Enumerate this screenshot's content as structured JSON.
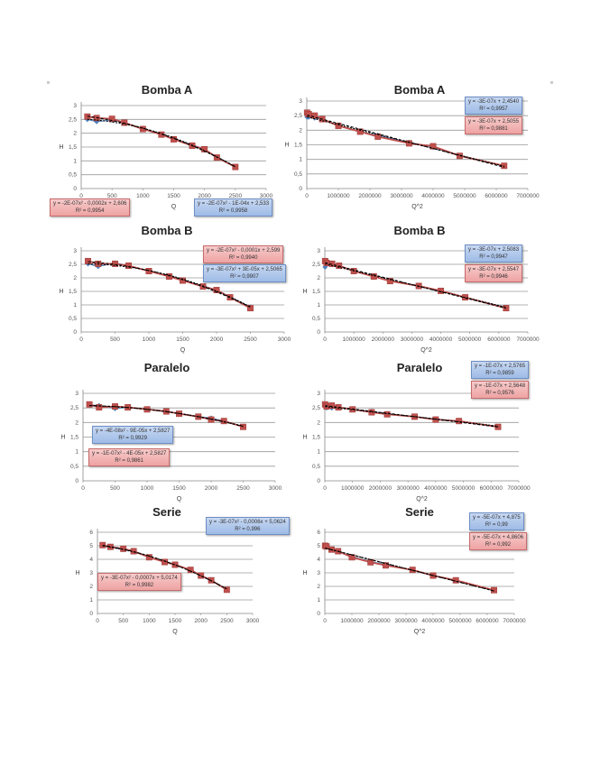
{
  "colors": {
    "series_blue": "#4f81bd",
    "series_red": "#c0504d",
    "trend": "#000000",
    "grid": "#9a9a9a",
    "box_blue": "#a9c4ea",
    "box_red": "#f2b3b3"
  },
  "chart_data": [
    {
      "id": "bombaA-q",
      "type": "scatter",
      "title": "Bomba A",
      "xlabel": "Q",
      "ylabel": "H",
      "xlim": [
        0,
        3000
      ],
      "ylim": [
        0,
        3
      ],
      "xticks": [
        "0",
        "500",
        "1000",
        "1500",
        "2000",
        "2500",
        "3000"
      ],
      "yticks": [
        "0",
        "0,5",
        "1",
        "1,5",
        "2",
        "2,5",
        "3"
      ],
      "grid": true,
      "series": [
        {
          "name": "blue",
          "x": [
            100,
            250,
            500,
            700,
            1000,
            1300,
            1500,
            1800,
            2000,
            2200,
            2500
          ],
          "y": [
            2.5,
            2.42,
            2.48,
            2.38,
            2.15,
            1.95,
            1.8,
            1.58,
            1.42,
            1.12,
            0.78
          ]
        },
        {
          "name": "red",
          "x": [
            100,
            250,
            500,
            700,
            1000,
            1300,
            1500,
            1800,
            2000,
            2200,
            2500
          ],
          "y": [
            2.6,
            2.55,
            2.52,
            2.38,
            2.15,
            1.95,
            1.78,
            1.55,
            1.42,
            1.12,
            0.78
          ]
        }
      ],
      "equations": [
        {
          "color": "red",
          "line1": "y = -2E-07x² - 0,0002x + 2,606",
          "line2": "R² = 0,9954"
        },
        {
          "color": "blue",
          "line1": "y = -2E-07x² - 1E-04x + 2,533",
          "line2": "R² = 0,9958"
        }
      ]
    },
    {
      "id": "bombaA-q2",
      "type": "scatter",
      "title": "Bomba A",
      "xlabel": "Q^2",
      "ylabel": "H",
      "xlim": [
        0,
        7000000
      ],
      "ylim": [
        0,
        3
      ],
      "xticks": [
        "0",
        "1000000",
        "2000000",
        "3000000",
        "4000000",
        "5000000",
        "6000000",
        "7000000"
      ],
      "yticks": [
        "0",
        "0,5",
        "1",
        "1,5",
        "2",
        "2,5",
        "3"
      ],
      "grid": true,
      "series": [
        {
          "name": "blue",
          "x": [
            10000,
            62500,
            250000,
            490000,
            1000000,
            1690000,
            2250000,
            3240000,
            4000000,
            4840000,
            6250000
          ],
          "y": [
            2.45,
            2.45,
            2.42,
            2.38,
            2.15,
            1.95,
            1.82,
            1.58,
            1.42,
            1.12,
            0.78
          ]
        },
        {
          "name": "red",
          "x": [
            10000,
            62500,
            250000,
            490000,
            1000000,
            1690000,
            2250000,
            3240000,
            4000000,
            4840000,
            6250000
          ],
          "y": [
            2.6,
            2.55,
            2.5,
            2.38,
            2.15,
            1.95,
            1.78,
            1.55,
            1.45,
            1.12,
            0.78
          ]
        }
      ],
      "equations": [
        {
          "color": "blue",
          "line1": "y = -3E-07x + 2,4540",
          "line2": "R² = 0,9957"
        },
        {
          "color": "red",
          "line1": "y = -3E-07x + 2,5055",
          "line2": "R² = 0,9881"
        }
      ]
    },
    {
      "id": "bombaB-q",
      "type": "scatter",
      "title": "Bomba B",
      "xlabel": "Q",
      "ylabel": "H",
      "xlim": [
        0,
        3000
      ],
      "ylim": [
        0,
        3
      ],
      "xticks": [
        "0",
        "500",
        "1000",
        "1500",
        "2000",
        "2500",
        "3000"
      ],
      "yticks": [
        "0",
        "0,5",
        "1",
        "1,5",
        "2",
        "2,5",
        "3"
      ],
      "grid": true,
      "series": [
        {
          "name": "blue",
          "x": [
            100,
            250,
            500,
            700,
            1000,
            1300,
            1500,
            1800,
            2000,
            2200,
            2500
          ],
          "y": [
            2.52,
            2.42,
            2.55,
            2.45,
            2.25,
            2.05,
            1.92,
            1.7,
            1.55,
            1.3,
            0.92
          ]
        },
        {
          "name": "red",
          "x": [
            100,
            250,
            500,
            700,
            1000,
            1300,
            1500,
            1800,
            2000,
            2200,
            2500
          ],
          "y": [
            2.62,
            2.52,
            2.52,
            2.45,
            2.25,
            2.05,
            1.9,
            1.68,
            1.55,
            1.28,
            0.88
          ]
        }
      ],
      "equations": [
        {
          "color": "red",
          "line1": "y = -2E-07x² - 0,0001x + 2,599",
          "line2": "R² = 0,9940"
        },
        {
          "color": "blue",
          "line1": "y = -3E-07x² + 3E-05x + 2,5065",
          "line2": "R² = 0,9907"
        }
      ]
    },
    {
      "id": "bombaB-q2",
      "type": "scatter",
      "title": "Bomba B",
      "xlabel": "Q^2",
      "ylabel": "H",
      "xlim": [
        0,
        7000000
      ],
      "ylim": [
        0,
        3
      ],
      "xticks": [
        "0",
        "1000000",
        "2000000",
        "3000000",
        "4000000",
        "5000000",
        "6000000",
        "7000000"
      ],
      "yticks": [
        "0",
        "0,5",
        "1",
        "1,5",
        "2",
        "2,5",
        "3"
      ],
      "grid": true,
      "series": [
        {
          "name": "blue",
          "x": [
            10000,
            62500,
            250000,
            490000,
            1000000,
            1690000,
            2250000,
            3240000,
            4000000,
            4840000,
            6250000
          ],
          "y": [
            2.4,
            2.5,
            2.55,
            2.45,
            2.25,
            2.05,
            1.9,
            1.7,
            1.52,
            1.28,
            0.9
          ]
        },
        {
          "name": "red",
          "x": [
            10000,
            62500,
            250000,
            490000,
            1000000,
            1690000,
            2250000,
            3240000,
            4000000,
            4840000,
            6250000
          ],
          "y": [
            2.62,
            2.55,
            2.52,
            2.45,
            2.25,
            2.05,
            1.88,
            1.7,
            1.52,
            1.28,
            0.88
          ]
        }
      ],
      "equations": [
        {
          "color": "blue",
          "line1": "y = -3E-07x + 2,5083",
          "line2": "R² = 0,9947"
        },
        {
          "color": "red",
          "line1": "y = -3E-07x + 2,5547",
          "line2": "R² = 0,9946"
        }
      ]
    },
    {
      "id": "paralelo-q",
      "type": "scatter",
      "title": "Paralelo",
      "xlabel": "Q",
      "ylabel": "H",
      "xlim": [
        0,
        3000
      ],
      "ylim": [
        0,
        3
      ],
      "xticks": [
        "0",
        "500",
        "1000",
        "1500",
        "2000",
        "2500",
        "3000"
      ],
      "yticks": [
        "0",
        "0,5",
        "1",
        "1,5",
        "2",
        "2,5",
        "3"
      ],
      "grid": true,
      "series": [
        {
          "name": "blue",
          "x": [
            100,
            250,
            500,
            700,
            1000,
            1300,
            1500,
            1800,
            2000,
            2200,
            2500
          ],
          "y": [
            2.6,
            2.58,
            2.48,
            2.52,
            2.45,
            2.38,
            2.3,
            2.2,
            2.15,
            2.05,
            1.85
          ]
        },
        {
          "name": "red",
          "x": [
            100,
            250,
            500,
            700,
            1000,
            1300,
            1500,
            1800,
            2000,
            2200,
            2500
          ],
          "y": [
            2.62,
            2.52,
            2.55,
            2.52,
            2.45,
            2.38,
            2.3,
            2.2,
            2.1,
            2.05,
            1.85
          ]
        }
      ],
      "equations": [
        {
          "color": "blue",
          "line1": "y = -4E-08x² - 9E-05x + 2,5827",
          "line2": "R² = 0,9929"
        },
        {
          "color": "red",
          "line1": "y = -1E-07x² - 4E-05x + 2,5827",
          "line2": "R² = 0,9861"
        }
      ]
    },
    {
      "id": "paralelo-q2",
      "type": "scatter",
      "title": "Paralelo",
      "xlabel": "Q^2",
      "ylabel": "H",
      "xlim": [
        0,
        7000000
      ],
      "ylim": [
        0,
        3
      ],
      "xticks": [
        "0",
        "1000000",
        "2000000",
        "3000000",
        "4000000",
        "5000000",
        "6000000",
        "7000000"
      ],
      "yticks": [
        "0",
        "0,5",
        "1",
        "1,5",
        "2",
        "2,5",
        "3"
      ],
      "grid": true,
      "series": [
        {
          "name": "blue",
          "x": [
            10000,
            62500,
            250000,
            490000,
            1000000,
            1690000,
            2250000,
            3240000,
            4000000,
            4840000,
            6250000
          ],
          "y": [
            2.55,
            2.5,
            2.5,
            2.52,
            2.45,
            2.38,
            2.3,
            2.2,
            2.12,
            2.05,
            1.85
          ]
        },
        {
          "name": "red",
          "x": [
            10000,
            62500,
            250000,
            490000,
            1000000,
            1690000,
            2250000,
            3240000,
            4000000,
            4840000,
            6250000
          ],
          "y": [
            2.62,
            2.55,
            2.58,
            2.52,
            2.45,
            2.35,
            2.28,
            2.2,
            2.1,
            2.05,
            1.85
          ]
        }
      ],
      "equations": [
        {
          "color": "blue",
          "line1": "y = -1E-07x + 2,5765",
          "line2": "R² = 0,9859"
        },
        {
          "color": "red",
          "line1": "y = -1E-07x + 2,5648",
          "line2": "R² = 0,9576"
        }
      ]
    },
    {
      "id": "serie-q",
      "type": "scatter",
      "title": "Serie",
      "xlabel": "Q",
      "ylabel": "H",
      "xlim": [
        0,
        3000
      ],
      "ylim": [
        0,
        6
      ],
      "xticks": [
        "0",
        "500",
        "1000",
        "1500",
        "2000",
        "2500",
        "3000"
      ],
      "yticks": [
        "0",
        "1",
        "2",
        "3",
        "4",
        "5",
        "6"
      ],
      "grid": true,
      "series": [
        {
          "name": "blue",
          "x": [
            100,
            250,
            500,
            700,
            1000,
            1300,
            1500,
            1800,
            2000,
            2200,
            2500
          ],
          "y": [
            5.0,
            4.9,
            4.72,
            4.6,
            4.15,
            3.8,
            3.6,
            3.2,
            2.8,
            2.45,
            1.75
          ]
        },
        {
          "name": "red",
          "x": [
            100,
            250,
            500,
            700,
            1000,
            1300,
            1500,
            1800,
            2000,
            2200,
            2500
          ],
          "y": [
            5.05,
            4.92,
            4.78,
            4.6,
            4.15,
            3.8,
            3.6,
            3.22,
            2.8,
            2.45,
            1.75
          ]
        }
      ],
      "equations": [
        {
          "color": "blue",
          "line1": "y = -3E-07x² - 0,0006x + 5,0624",
          "line2": "R² = 0,996"
        },
        {
          "color": "red",
          "line1": "y = -3E-07x² - 0,0007x + 5,0174",
          "line2": "R² = 0,9982"
        }
      ]
    },
    {
      "id": "serie-q2",
      "type": "scatter",
      "title": "Serie",
      "xlabel": "Q^2",
      "ylabel": "H",
      "xlim": [
        0,
        7000000
      ],
      "ylim": [
        0,
        6
      ],
      "xticks": [
        "0",
        "1000000",
        "2000000",
        "3000000",
        "4000000",
        "5000000",
        "6000000",
        "7000000"
      ],
      "yticks": [
        "0",
        "1",
        "2",
        "3",
        "4",
        "5",
        "6"
      ],
      "grid": true,
      "series": [
        {
          "name": "blue",
          "x": [
            10000,
            62500,
            250000,
            490000,
            1000000,
            1690000,
            2250000,
            3240000,
            4000000,
            4840000,
            6250000
          ],
          "y": [
            4.95,
            4.95,
            4.72,
            4.6,
            4.2,
            3.82,
            3.62,
            3.2,
            2.78,
            2.45,
            1.72
          ]
        },
        {
          "name": "red",
          "x": [
            10000,
            62500,
            250000,
            490000,
            1000000,
            1690000,
            2250000,
            3240000,
            4000000,
            4840000,
            6250000
          ],
          "y": [
            5.0,
            4.95,
            4.72,
            4.6,
            4.15,
            3.78,
            3.55,
            3.22,
            2.8,
            2.45,
            1.72
          ]
        }
      ],
      "equations": [
        {
          "color": "blue",
          "line1": "y = -5E-07x + 4,875",
          "line2": "R² = 0,99"
        },
        {
          "color": "red",
          "line1": "y = -5E-07x + 4,8606",
          "line2": "R² = 0,992"
        }
      ]
    }
  ]
}
